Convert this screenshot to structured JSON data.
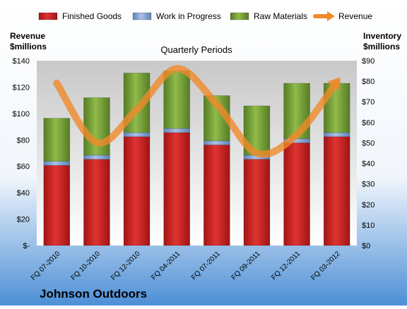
{
  "company": "Johnson Outdoors",
  "chart_data": {
    "type": "bar",
    "subtitle": "Quarterly Periods",
    "left_axis_label": [
      "Revenue",
      "$millions"
    ],
    "right_axis_label": [
      "Inventory",
      "$millions"
    ],
    "categories": [
      "FQ 07-2010",
      "FQ 10-2010",
      "FQ 12-2010",
      "FQ 04-2011",
      "FQ 07-2011",
      "FQ 09-2011",
      "FQ 12-2011",
      "FQ 03-2012"
    ],
    "left_ylim": [
      0,
      140
    ],
    "left_ticks": [
      "$-",
      "$20",
      "$40",
      "$60",
      "$80",
      "$100",
      "$120",
      "$140"
    ],
    "right_ylim": [
      0,
      90
    ],
    "right_ticks": [
      "$0",
      "$10",
      "$20",
      "$30",
      "$40",
      "$50",
      "$60",
      "$70",
      "$80",
      "$90"
    ],
    "series": [
      {
        "name": "Finished Goods",
        "axis": "right",
        "stacked": true,
        "color": "#cc2222",
        "values": [
          39,
          42,
          53,
          55,
          49,
          42,
          50,
          53
        ]
      },
      {
        "name": "Work in Progress",
        "axis": "right",
        "stacked": true,
        "color": "#7d9fd0",
        "values": [
          2,
          2,
          2,
          2,
          2,
          2,
          2,
          2
        ]
      },
      {
        "name": "Raw Materials",
        "axis": "right",
        "stacked": true,
        "color": "#77a236",
        "values": [
          21,
          28,
          29,
          28,
          22,
          24,
          27,
          24
        ]
      },
      {
        "name": "Revenue",
        "axis": "left",
        "type": "line",
        "color": "#f08a2a",
        "values": [
          123,
          78,
          103,
          134,
          107,
          70,
          84,
          124
        ]
      }
    ],
    "grid": false,
    "legend": "top"
  }
}
